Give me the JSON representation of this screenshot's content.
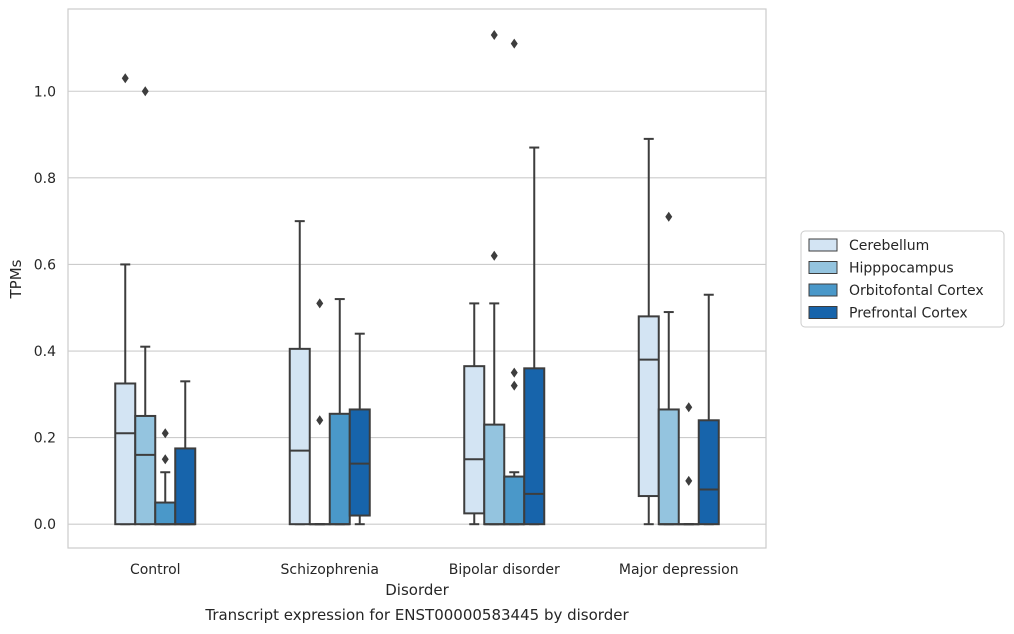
{
  "caption": "Transcript expression for ENST00000583445 by disorder",
  "chart_data": {
    "type": "boxplot",
    "title": "",
    "xlabel": "Disorder",
    "ylabel": "TPMs",
    "ylim": [
      -0.055,
      1.19
    ],
    "yticks": [
      0.0,
      0.2,
      0.4,
      0.6,
      0.8,
      1.0
    ],
    "ytick_labels": [
      "0.0",
      "0.2",
      "0.4",
      "0.6",
      "0.8",
      "1.0"
    ],
    "grid": "horizontal",
    "legend_position": "right",
    "categories": [
      "Control",
      "Schizophrenia",
      "Bipolar disorder",
      "Major depression"
    ],
    "series": [
      {
        "name": "Cerebellum",
        "color": "#d3e4f3",
        "boxes": [
          {
            "whislo": 0.0,
            "q1": 0.0,
            "med": 0.21,
            "q3": 0.325,
            "whishi": 0.6,
            "fliers": [
              1.03
            ]
          },
          {
            "whislo": 0.0,
            "q1": 0.0,
            "med": 0.17,
            "q3": 0.405,
            "whishi": 0.7,
            "fliers": []
          },
          {
            "whislo": 0.0,
            "q1": 0.025,
            "med": 0.15,
            "q3": 0.365,
            "whishi": 0.51,
            "fliers": []
          },
          {
            "whislo": 0.0,
            "q1": 0.065,
            "med": 0.38,
            "q3": 0.48,
            "whishi": 0.89,
            "fliers": []
          }
        ]
      },
      {
        "name": "Hipppocampus",
        "color": "#94c4df",
        "boxes": [
          {
            "whislo": 0.0,
            "q1": 0.0,
            "med": 0.16,
            "q3": 0.25,
            "whishi": 0.41,
            "fliers": [
              1.0
            ]
          },
          {
            "whislo": 0.0,
            "q1": 0.0,
            "med": 0.0,
            "q3": 0.0,
            "whishi": 0.0,
            "fliers": [
              0.24,
              0.51
            ]
          },
          {
            "whislo": 0.0,
            "q1": 0.0,
            "med": 0.0,
            "q3": 0.23,
            "whishi": 0.51,
            "fliers": [
              0.62,
              1.13
            ]
          },
          {
            "whislo": 0.0,
            "q1": 0.0,
            "med": 0.0,
            "q3": 0.265,
            "whishi": 0.49,
            "fliers": [
              0.71
            ]
          }
        ]
      },
      {
        "name": "Orbitofontal Cortex",
        "color": "#4a98c9",
        "boxes": [
          {
            "whislo": 0.0,
            "q1": 0.0,
            "med": 0.0,
            "q3": 0.05,
            "whishi": 0.12,
            "fliers": [
              0.15,
              0.21
            ]
          },
          {
            "whislo": 0.0,
            "q1": 0.0,
            "med": 0.0,
            "q3": 0.255,
            "whishi": 0.52,
            "fliers": []
          },
          {
            "whislo": 0.0,
            "q1": 0.0,
            "med": 0.0,
            "q3": 0.11,
            "whishi": 0.12,
            "fliers": [
              0.32,
              0.35,
              1.11
            ]
          },
          {
            "whislo": 0.0,
            "q1": 0.0,
            "med": 0.0,
            "q3": 0.0,
            "whishi": 0.0,
            "fliers": [
              0.1,
              0.27
            ]
          }
        ]
      },
      {
        "name": "Prefrontal Cortex",
        "color": "#1764ab",
        "boxes": [
          {
            "whislo": 0.0,
            "q1": 0.0,
            "med": 0.0,
            "q3": 0.175,
            "whishi": 0.33,
            "fliers": []
          },
          {
            "whislo": 0.0,
            "q1": 0.02,
            "med": 0.14,
            "q3": 0.265,
            "whishi": 0.44,
            "fliers": []
          },
          {
            "whislo": 0.0,
            "q1": 0.0,
            "med": 0.07,
            "q3": 0.36,
            "whishi": 0.87,
            "fliers": []
          },
          {
            "whislo": 0.0,
            "q1": 0.0,
            "med": 0.08,
            "q3": 0.24,
            "whishi": 0.53,
            "fliers": []
          }
        ]
      }
    ]
  }
}
